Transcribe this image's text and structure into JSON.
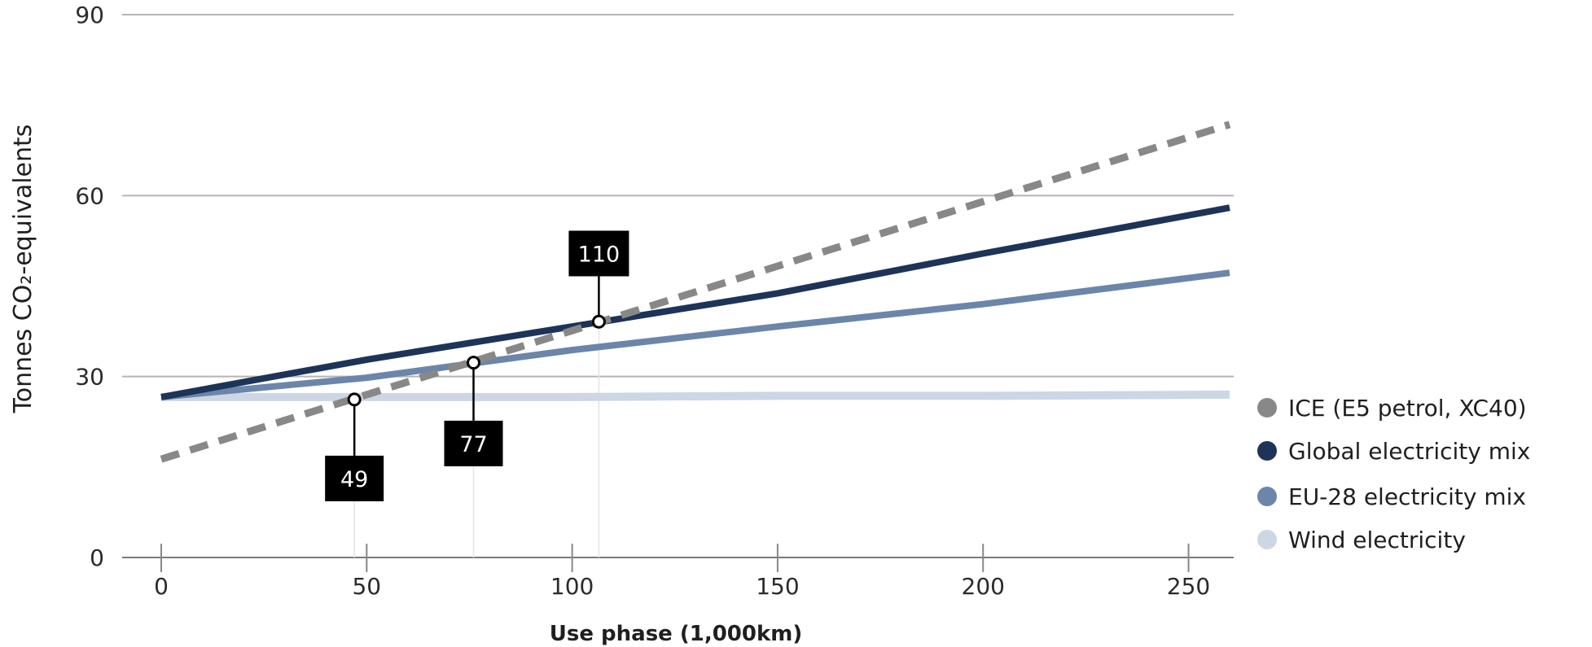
{
  "chart_data": {
    "type": "line",
    "title": "",
    "xlabel": "Use phase (1,000km)",
    "ylabel": "Tonnes CO₂-equivalents",
    "xlim": [
      0,
      260
    ],
    "ylim": [
      0,
      90
    ],
    "x_ticks": [
      0,
      50,
      100,
      150,
      200,
      250
    ],
    "y_ticks": [
      0,
      30,
      60,
      90
    ],
    "grid": "horizontal",
    "legend_position": "right",
    "series": [
      {
        "name": "ICE (E5 petrol, XC40)",
        "color": "#888888",
        "style": "dashed",
        "points": [
          [
            0,
            16.3
          ],
          [
            50,
            27.0
          ],
          [
            100,
            37.6
          ],
          [
            150,
            48.3
          ],
          [
            200,
            59.0
          ],
          [
            260,
            71.8
          ]
        ]
      },
      {
        "name": "Global electricity mix",
        "color": "#1e3358",
        "style": "solid",
        "points": [
          [
            0,
            26.6
          ],
          [
            50,
            32.8
          ],
          [
            100,
            38.3
          ],
          [
            150,
            43.8
          ],
          [
            200,
            50.4
          ],
          [
            260,
            58.0
          ]
        ]
      },
      {
        "name": "EU-28 electricity mix",
        "color": "#6c85aa",
        "style": "solid",
        "points": [
          [
            0,
            26.6
          ],
          [
            50,
            29.8
          ],
          [
            100,
            34.4
          ],
          [
            150,
            38.3
          ],
          [
            200,
            42.0
          ],
          [
            260,
            47.2
          ]
        ]
      },
      {
        "name": "Wind electricity",
        "color": "#ccd6e5",
        "style": "solid",
        "points": [
          [
            0,
            26.6
          ],
          [
            50,
            26.6
          ],
          [
            100,
            26.6
          ],
          [
            150,
            26.8
          ],
          [
            200,
            26.8
          ],
          [
            260,
            27.0
          ]
        ]
      }
    ],
    "annotations": [
      {
        "label": "49",
        "x": 47,
        "y": 26.2,
        "box_y": 13.1
      },
      {
        "label": "77",
        "x": 76,
        "y": 32.3,
        "box_y": 18.9
      },
      {
        "label": "110",
        "x": 106.5,
        "y": 39.1,
        "box_y": 50.4
      }
    ]
  }
}
